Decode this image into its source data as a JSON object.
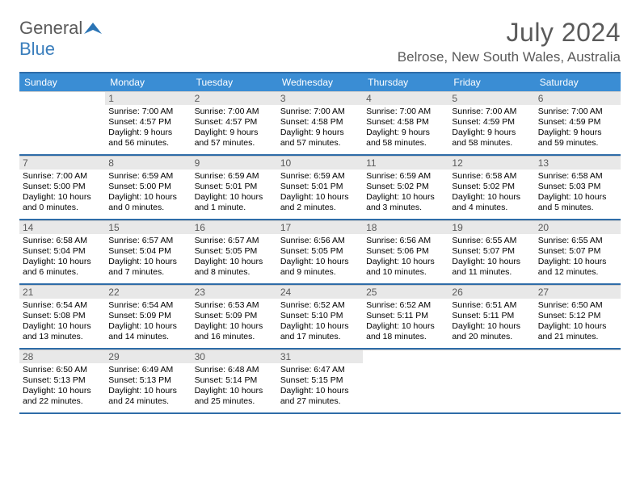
{
  "logo": {
    "text1": "General",
    "text2": "Blue"
  },
  "title": "July 2024",
  "location": "Belrose, New South Wales, Australia",
  "colors": {
    "header_bar": "#3a8dd4",
    "border_blue": "#2e6ca8",
    "day_head_bg": "#e8e8e8",
    "text_gray": "#5a5a5a"
  },
  "weekdays": [
    "Sunday",
    "Monday",
    "Tuesday",
    "Wednesday",
    "Thursday",
    "Friday",
    "Saturday"
  ],
  "weeks": [
    [
      null,
      {
        "n": "1",
        "sr": "Sunrise: 7:00 AM",
        "ss": "Sunset: 4:57 PM",
        "dl": "Daylight: 9 hours and 56 minutes."
      },
      {
        "n": "2",
        "sr": "Sunrise: 7:00 AM",
        "ss": "Sunset: 4:57 PM",
        "dl": "Daylight: 9 hours and 57 minutes."
      },
      {
        "n": "3",
        "sr": "Sunrise: 7:00 AM",
        "ss": "Sunset: 4:58 PM",
        "dl": "Daylight: 9 hours and 57 minutes."
      },
      {
        "n": "4",
        "sr": "Sunrise: 7:00 AM",
        "ss": "Sunset: 4:58 PM",
        "dl": "Daylight: 9 hours and 58 minutes."
      },
      {
        "n": "5",
        "sr": "Sunrise: 7:00 AM",
        "ss": "Sunset: 4:59 PM",
        "dl": "Daylight: 9 hours and 58 minutes."
      },
      {
        "n": "6",
        "sr": "Sunrise: 7:00 AM",
        "ss": "Sunset: 4:59 PM",
        "dl": "Daylight: 9 hours and 59 minutes."
      }
    ],
    [
      {
        "n": "7",
        "sr": "Sunrise: 7:00 AM",
        "ss": "Sunset: 5:00 PM",
        "dl": "Daylight: 10 hours and 0 minutes."
      },
      {
        "n": "8",
        "sr": "Sunrise: 6:59 AM",
        "ss": "Sunset: 5:00 PM",
        "dl": "Daylight: 10 hours and 0 minutes."
      },
      {
        "n": "9",
        "sr": "Sunrise: 6:59 AM",
        "ss": "Sunset: 5:01 PM",
        "dl": "Daylight: 10 hours and 1 minute."
      },
      {
        "n": "10",
        "sr": "Sunrise: 6:59 AM",
        "ss": "Sunset: 5:01 PM",
        "dl": "Daylight: 10 hours and 2 minutes."
      },
      {
        "n": "11",
        "sr": "Sunrise: 6:59 AM",
        "ss": "Sunset: 5:02 PM",
        "dl": "Daylight: 10 hours and 3 minutes."
      },
      {
        "n": "12",
        "sr": "Sunrise: 6:58 AM",
        "ss": "Sunset: 5:02 PM",
        "dl": "Daylight: 10 hours and 4 minutes."
      },
      {
        "n": "13",
        "sr": "Sunrise: 6:58 AM",
        "ss": "Sunset: 5:03 PM",
        "dl": "Daylight: 10 hours and 5 minutes."
      }
    ],
    [
      {
        "n": "14",
        "sr": "Sunrise: 6:58 AM",
        "ss": "Sunset: 5:04 PM",
        "dl": "Daylight: 10 hours and 6 minutes."
      },
      {
        "n": "15",
        "sr": "Sunrise: 6:57 AM",
        "ss": "Sunset: 5:04 PM",
        "dl": "Daylight: 10 hours and 7 minutes."
      },
      {
        "n": "16",
        "sr": "Sunrise: 6:57 AM",
        "ss": "Sunset: 5:05 PM",
        "dl": "Daylight: 10 hours and 8 minutes."
      },
      {
        "n": "17",
        "sr": "Sunrise: 6:56 AM",
        "ss": "Sunset: 5:05 PM",
        "dl": "Daylight: 10 hours and 9 minutes."
      },
      {
        "n": "18",
        "sr": "Sunrise: 6:56 AM",
        "ss": "Sunset: 5:06 PM",
        "dl": "Daylight: 10 hours and 10 minutes."
      },
      {
        "n": "19",
        "sr": "Sunrise: 6:55 AM",
        "ss": "Sunset: 5:07 PM",
        "dl": "Daylight: 10 hours and 11 minutes."
      },
      {
        "n": "20",
        "sr": "Sunrise: 6:55 AM",
        "ss": "Sunset: 5:07 PM",
        "dl": "Daylight: 10 hours and 12 minutes."
      }
    ],
    [
      {
        "n": "21",
        "sr": "Sunrise: 6:54 AM",
        "ss": "Sunset: 5:08 PM",
        "dl": "Daylight: 10 hours and 13 minutes."
      },
      {
        "n": "22",
        "sr": "Sunrise: 6:54 AM",
        "ss": "Sunset: 5:09 PM",
        "dl": "Daylight: 10 hours and 14 minutes."
      },
      {
        "n": "23",
        "sr": "Sunrise: 6:53 AM",
        "ss": "Sunset: 5:09 PM",
        "dl": "Daylight: 10 hours and 16 minutes."
      },
      {
        "n": "24",
        "sr": "Sunrise: 6:52 AM",
        "ss": "Sunset: 5:10 PM",
        "dl": "Daylight: 10 hours and 17 minutes."
      },
      {
        "n": "25",
        "sr": "Sunrise: 6:52 AM",
        "ss": "Sunset: 5:11 PM",
        "dl": "Daylight: 10 hours and 18 minutes."
      },
      {
        "n": "26",
        "sr": "Sunrise: 6:51 AM",
        "ss": "Sunset: 5:11 PM",
        "dl": "Daylight: 10 hours and 20 minutes."
      },
      {
        "n": "27",
        "sr": "Sunrise: 6:50 AM",
        "ss": "Sunset: 5:12 PM",
        "dl": "Daylight: 10 hours and 21 minutes."
      }
    ],
    [
      {
        "n": "28",
        "sr": "Sunrise: 6:50 AM",
        "ss": "Sunset: 5:13 PM",
        "dl": "Daylight: 10 hours and 22 minutes."
      },
      {
        "n": "29",
        "sr": "Sunrise: 6:49 AM",
        "ss": "Sunset: 5:13 PM",
        "dl": "Daylight: 10 hours and 24 minutes."
      },
      {
        "n": "30",
        "sr": "Sunrise: 6:48 AM",
        "ss": "Sunset: 5:14 PM",
        "dl": "Daylight: 10 hours and 25 minutes."
      },
      {
        "n": "31",
        "sr": "Sunrise: 6:47 AM",
        "ss": "Sunset: 5:15 PM",
        "dl": "Daylight: 10 hours and 27 minutes."
      },
      null,
      null,
      null
    ]
  ]
}
